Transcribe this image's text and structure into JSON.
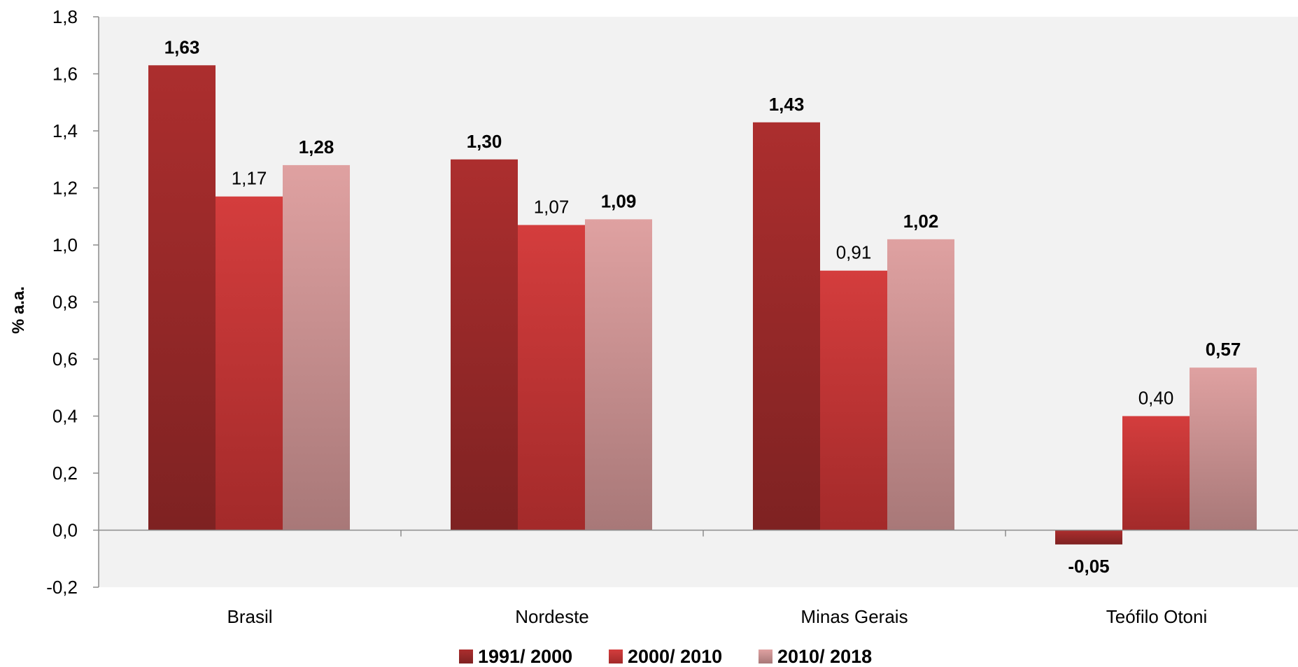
{
  "chart_data": {
    "type": "bar",
    "ylabel": "% a.a.",
    "ylim": [
      -0.2,
      1.8
    ],
    "yticks": [
      "-0,2",
      "0,0",
      "0,2",
      "0,4",
      "0,6",
      "0,8",
      "1,0",
      "1,2",
      "1,4",
      "1,6",
      "1,8"
    ],
    "categories": [
      "Brasil",
      "Nordeste",
      "Minas Gerais",
      "Teófilo Otoni"
    ],
    "series": [
      {
        "name": "1991/ 2000",
        "values": [
          1.63,
          1.3,
          1.43,
          -0.05
        ],
        "labels": [
          "1,63",
          "1,30",
          "1,43",
          "-0,05"
        ],
        "label_bold": true,
        "color_top": "#ac2e2e",
        "color_bottom": "#7e2222"
      },
      {
        "name": "2000/ 2010",
        "values": [
          1.17,
          1.07,
          0.91,
          0.4
        ],
        "labels": [
          "1,17",
          "1,07",
          "0,91",
          "0,40"
        ],
        "label_bold": false,
        "color_top": "#d43d3d",
        "color_bottom": "#a32a2a"
      },
      {
        "name": "2010/ 2018",
        "values": [
          1.28,
          1.09,
          1.02,
          0.57
        ],
        "labels": [
          "1,28",
          "1,09",
          "1,02",
          "0,57"
        ],
        "label_bold": true,
        "color_top": "#dfa1a1",
        "color_bottom": "#a87878"
      }
    ],
    "grid": false,
    "legend_position": "bottom",
    "plot_background": "#f2f2f2"
  }
}
